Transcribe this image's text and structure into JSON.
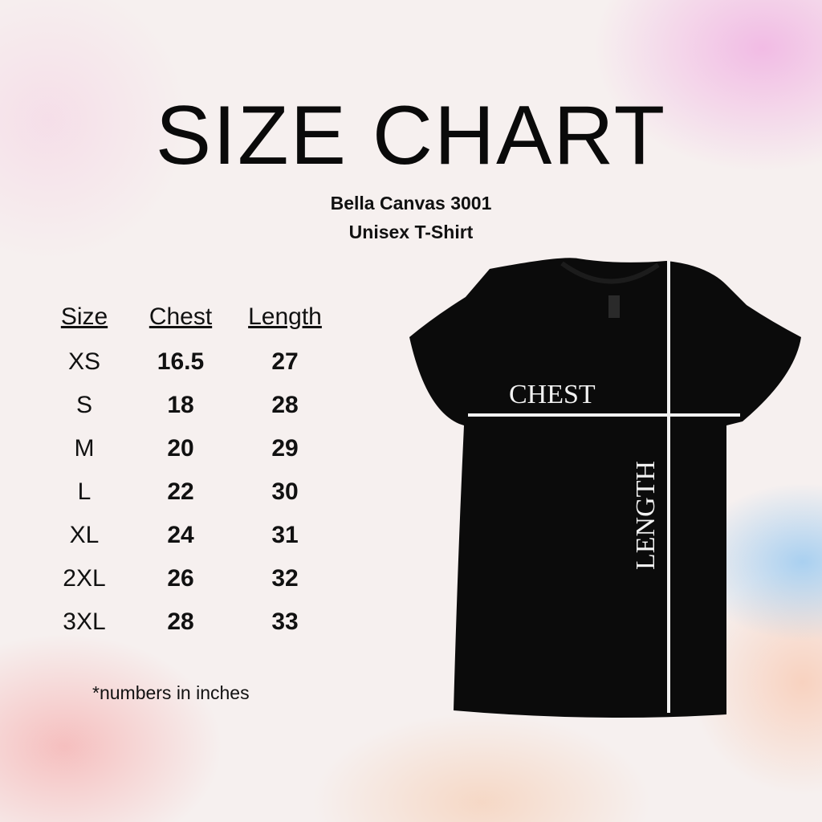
{
  "title": "SIZE CHART",
  "subtitle1": "Bella Canvas 3001",
  "subtitle2": "Unisex T-Shirt",
  "table": {
    "headers": [
      "Size",
      "Chest",
      "Length"
    ],
    "rows": [
      [
        "XS",
        "16.5",
        "27"
      ],
      [
        "S",
        "18",
        "28"
      ],
      [
        "M",
        "20",
        "29"
      ],
      [
        "L",
        "22",
        "30"
      ],
      [
        "XL",
        "24",
        "31"
      ],
      [
        "2XL",
        "26",
        "32"
      ],
      [
        "3XL",
        "28",
        "33"
      ]
    ]
  },
  "note": "*numbers in inches",
  "shirt": {
    "chest_label": "CHEST",
    "length_label": "LENGTH",
    "color": "#0b0b0b",
    "line_color": "#f2f2f2"
  }
}
